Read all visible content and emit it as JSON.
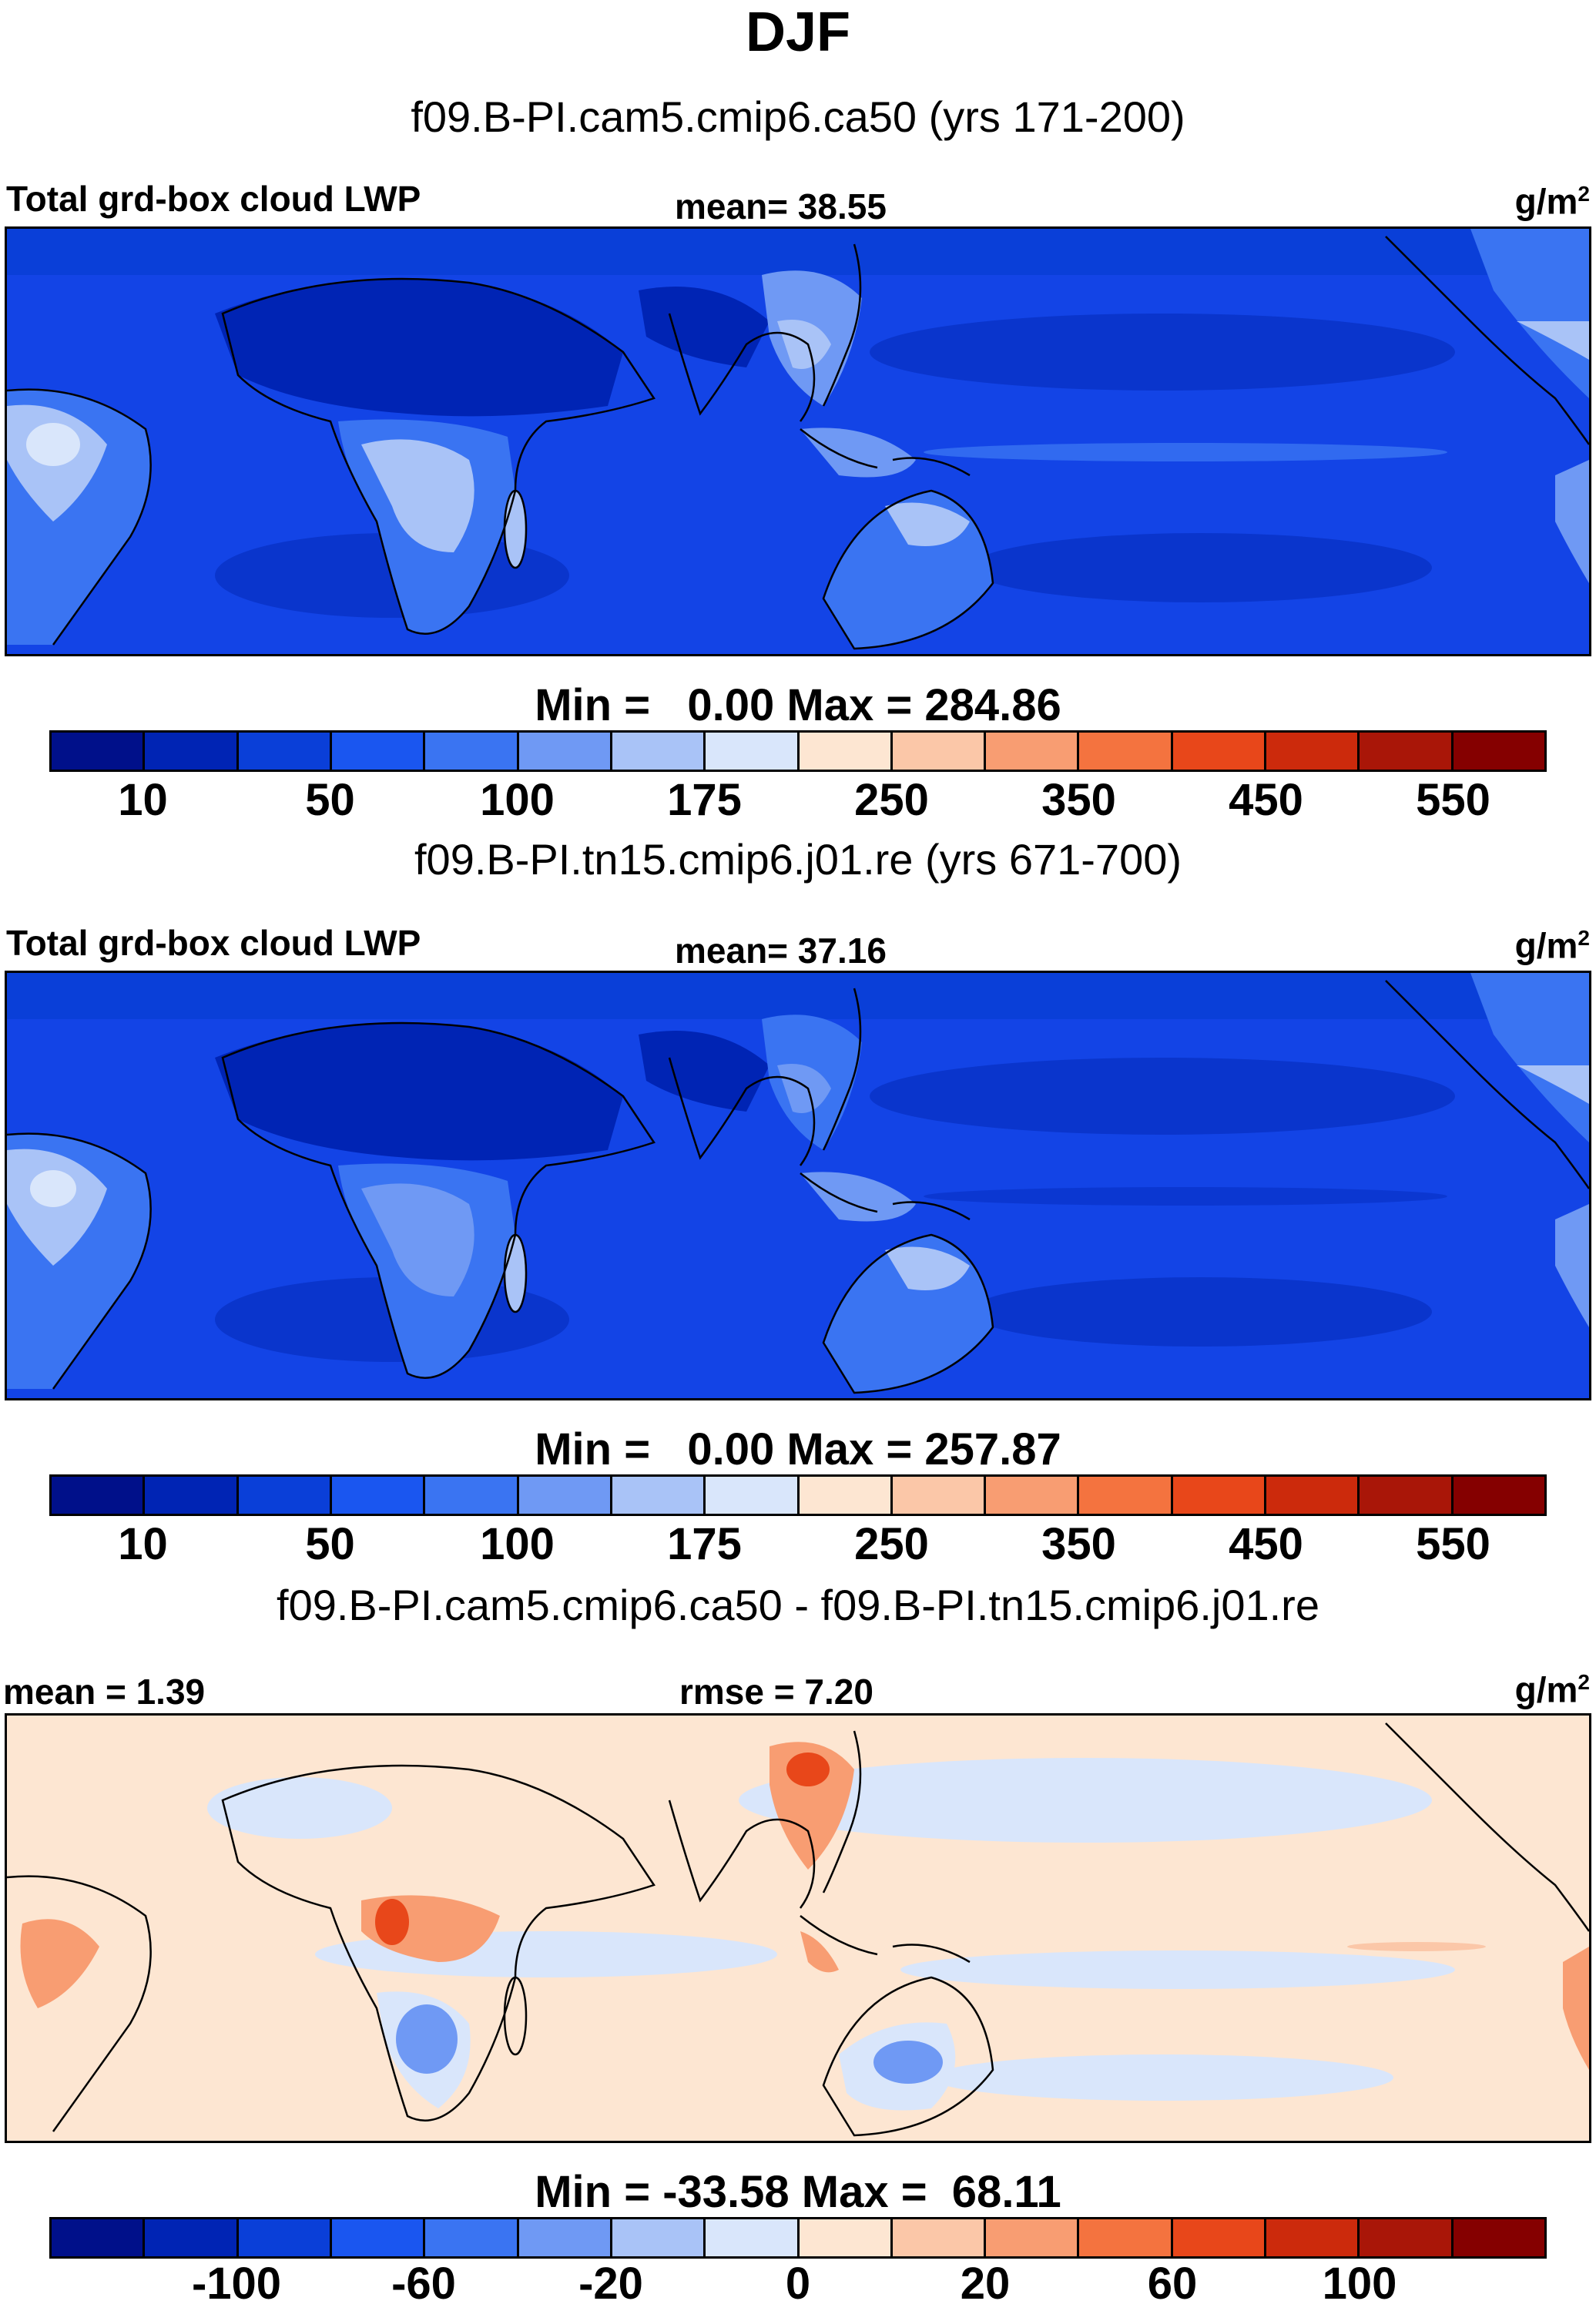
{
  "title": "DJF",
  "panels": [
    {
      "case_title": "f09.B-PI.cam5.cmip6.ca50 (yrs 171-200)",
      "left_label": "Total grd-box cloud LWP",
      "center_label": "mean=  38.55",
      "units": "g/m",
      "units_sup": "2",
      "minmax": "Min =   0.00 Max = 284.86",
      "colorbar_ticks": [
        "10",
        "50",
        "100",
        "175",
        "250",
        "350",
        "450",
        "550"
      ]
    },
    {
      "case_title": "f09.B-PI.tn15.cmip6.j01.re (yrs 671-700)",
      "left_label": "Total grd-box cloud LWP",
      "center_label": "mean=  37.16",
      "units": "g/m",
      "units_sup": "2",
      "minmax": "Min =   0.00 Max = 257.87",
      "colorbar_ticks": [
        "10",
        "50",
        "100",
        "175",
        "250",
        "350",
        "450",
        "550"
      ]
    },
    {
      "case_title": "f09.B-PI.cam5.cmip6.ca50 - f09.B-PI.tn15.cmip6.j01.re",
      "left_label": "mean =   1.39",
      "center_label": "rmse =   7.20",
      "units": "g/m",
      "units_sup": "2",
      "minmax": "Min = -33.58 Max =  68.11",
      "colorbar_ticks": [
        "-100",
        "-60",
        "-20",
        "0",
        "20",
        "60",
        "100"
      ]
    }
  ],
  "colorbar_colors": [
    "#00108a",
    "#0024b4",
    "#0a3fd8",
    "#1a56f0",
    "#3a74f2",
    "#6f99f4",
    "#a9c3f7",
    "#d9e6fb",
    "#fde6d2",
    "#fbc7a8",
    "#f89d72",
    "#f4733f",
    "#e8471a",
    "#cc2a0c",
    "#a91608",
    "#850000"
  ],
  "map_colors": {
    "ocean_fields": "#1344e6",
    "dry_desert": "#0024b4",
    "trade_cumulus": "#0a35cc",
    "moist_land": "#3a74f2",
    "wet_land": "#a9c3f7",
    "wettest": "#d9e6fb",
    "diff_background": "#fde6d2",
    "diff_negative": "#d9e6fb",
    "diff_negative_strong": "#6f99f4",
    "diff_positive": "#f89d72",
    "diff_positive_strong": "#e8471a"
  }
}
